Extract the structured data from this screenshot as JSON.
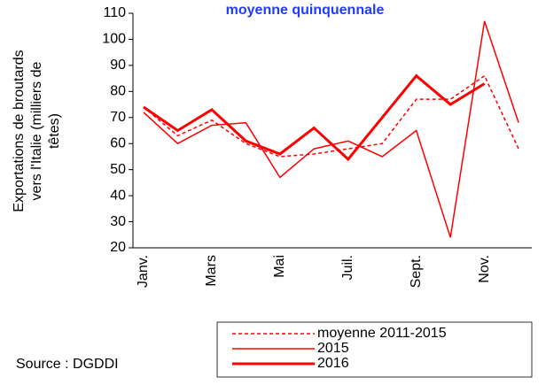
{
  "chart_data": {
    "type": "line",
    "title": "moyenne quinquennale",
    "ylabel": [
      "Exportations de broutards",
      "vers l'Italie (milliers de",
      "têtes)"
    ],
    "categories": [
      "Janv.",
      null,
      "Mars",
      null,
      "Mai",
      null,
      "Juil.",
      null,
      "Sept.",
      null,
      "Nov.",
      null
    ],
    "series": [
      {
        "name": "moyenne 2011-2015",
        "color": "#ff0000",
        "dash": "dotted",
        "width": 1.5,
        "values": [
          74,
          63,
          69,
          60,
          55,
          56,
          58,
          60,
          77,
          77,
          86,
          58
        ]
      },
      {
        "name": "2015",
        "color": "#ff0000",
        "dash": "solid",
        "width": 1.5,
        "values": [
          72,
          60,
          67,
          68,
          47,
          58,
          61,
          55,
          65,
          24,
          107,
          68
        ]
      },
      {
        "name": "2016",
        "color": "#ff0000",
        "dash": "solid",
        "width": 3,
        "values": [
          74,
          65,
          73,
          61,
          56,
          66,
          54,
          70,
          86,
          75,
          83,
          null
        ]
      }
    ],
    "ylim": [
      20,
      110
    ],
    "yticks": [
      20,
      30,
      40,
      50,
      60,
      70,
      80,
      90,
      100,
      110
    ],
    "grid": false
  },
  "source": "Source : DGDDI"
}
